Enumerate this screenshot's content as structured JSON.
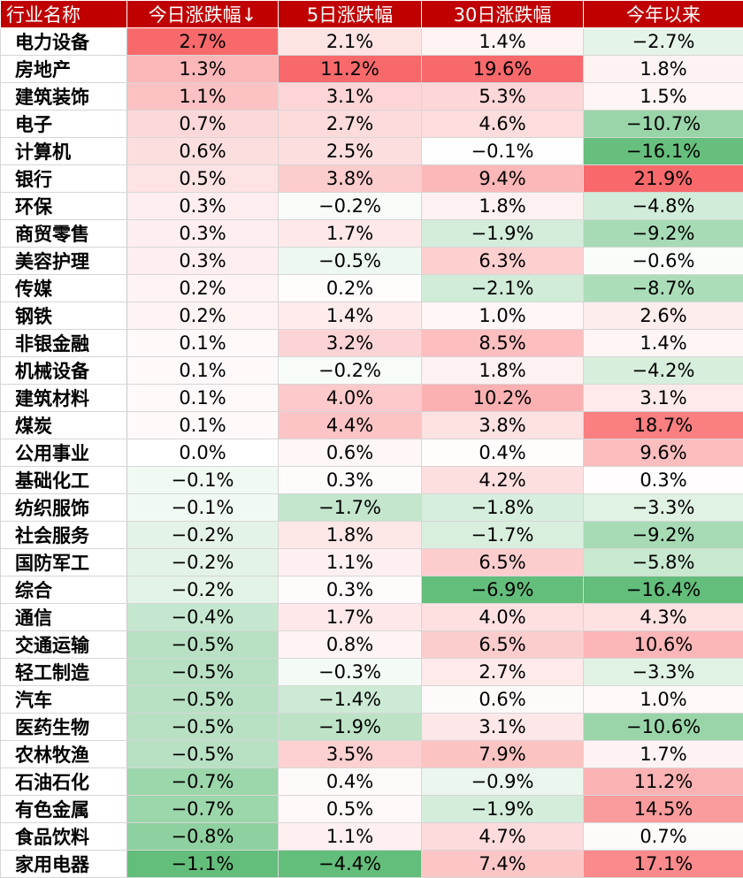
{
  "chart_data": {
    "type": "table",
    "colors": {
      "header_bg": "#c00000",
      "header_text": "#ffffff",
      "positive": "#f8696b",
      "negative": "#63be7b",
      "neutral": "#ffffff"
    },
    "headers": [
      "行业名称",
      "今日涨跌幅↓",
      "5日涨跌幅",
      "30日涨跌幅",
      "今年以来"
    ],
    "rows": [
      {
        "name": "电力设备",
        "values": [
          "2.7%",
          "2.1%",
          "1.4%",
          "−2.7%"
        ],
        "nums": [
          2.7,
          2.1,
          1.4,
          -2.7
        ]
      },
      {
        "name": "房地产",
        "values": [
          "1.3%",
          "11.2%",
          "19.6%",
          "1.8%"
        ],
        "nums": [
          1.3,
          11.2,
          19.6,
          1.8
        ]
      },
      {
        "name": "建筑装饰",
        "values": [
          "1.1%",
          "3.1%",
          "5.3%",
          "1.5%"
        ],
        "nums": [
          1.1,
          3.1,
          5.3,
          1.5
        ]
      },
      {
        "name": "电子",
        "values": [
          "0.7%",
          "2.7%",
          "4.6%",
          "−10.7%"
        ],
        "nums": [
          0.7,
          2.7,
          4.6,
          -10.7
        ]
      },
      {
        "name": "计算机",
        "values": [
          "0.6%",
          "2.5%",
          "−0.1%",
          "−16.1%"
        ],
        "nums": [
          0.6,
          2.5,
          -0.1,
          -16.1
        ]
      },
      {
        "name": "银行",
        "values": [
          "0.5%",
          "3.8%",
          "9.4%",
          "21.9%"
        ],
        "nums": [
          0.5,
          3.8,
          9.4,
          21.9
        ]
      },
      {
        "name": "环保",
        "values": [
          "0.3%",
          "−0.2%",
          "1.8%",
          "−4.8%"
        ],
        "nums": [
          0.3,
          -0.2,
          1.8,
          -4.8
        ]
      },
      {
        "name": "商贸零售",
        "values": [
          "0.3%",
          "1.7%",
          "−1.9%",
          "−9.2%"
        ],
        "nums": [
          0.3,
          1.7,
          -1.9,
          -9.2
        ]
      },
      {
        "name": "美容护理",
        "values": [
          "0.3%",
          "−0.5%",
          "6.3%",
          "−0.6%"
        ],
        "nums": [
          0.3,
          -0.5,
          6.3,
          -0.6
        ]
      },
      {
        "name": "传媒",
        "values": [
          "0.2%",
          "0.2%",
          "−2.1%",
          "−8.7%"
        ],
        "nums": [
          0.2,
          0.2,
          -2.1,
          -8.7
        ]
      },
      {
        "name": "钢铁",
        "values": [
          "0.2%",
          "1.4%",
          "1.0%",
          "2.6%"
        ],
        "nums": [
          0.2,
          1.4,
          1.0,
          2.6
        ]
      },
      {
        "name": "非银金融",
        "values": [
          "0.1%",
          "3.2%",
          "8.5%",
          "1.4%"
        ],
        "nums": [
          0.1,
          3.2,
          8.5,
          1.4
        ]
      },
      {
        "name": "机械设备",
        "values": [
          "0.1%",
          "−0.2%",
          "1.8%",
          "−4.2%"
        ],
        "nums": [
          0.1,
          -0.2,
          1.8,
          -4.2
        ]
      },
      {
        "name": "建筑材料",
        "values": [
          "0.1%",
          "4.0%",
          "10.2%",
          "3.1%"
        ],
        "nums": [
          0.1,
          4.0,
          10.2,
          3.1
        ]
      },
      {
        "name": "煤炭",
        "values": [
          "0.1%",
          "4.4%",
          "3.8%",
          "18.7%"
        ],
        "nums": [
          0.1,
          4.4,
          3.8,
          18.7
        ]
      },
      {
        "name": "公用事业",
        "values": [
          "0.0%",
          "0.6%",
          "0.4%",
          "9.6%"
        ],
        "nums": [
          0.0,
          0.6,
          0.4,
          9.6
        ]
      },
      {
        "name": "基础化工",
        "values": [
          "−0.1%",
          "0.3%",
          "4.2%",
          "0.3%"
        ],
        "nums": [
          -0.1,
          0.3,
          4.2,
          0.3
        ]
      },
      {
        "name": "纺织服饰",
        "values": [
          "−0.1%",
          "−1.7%",
          "−1.8%",
          "−3.3%"
        ],
        "nums": [
          -0.1,
          -1.7,
          -1.8,
          -3.3
        ]
      },
      {
        "name": "社会服务",
        "values": [
          "−0.2%",
          "1.8%",
          "−1.7%",
          "−9.2%"
        ],
        "nums": [
          -0.2,
          1.8,
          -1.7,
          -9.2
        ]
      },
      {
        "name": "国防军工",
        "values": [
          "−0.2%",
          "1.1%",
          "6.5%",
          "−5.8%"
        ],
        "nums": [
          -0.2,
          1.1,
          6.5,
          -5.8
        ]
      },
      {
        "name": "综合",
        "values": [
          "−0.2%",
          "0.3%",
          "−6.9%",
          "−16.4%"
        ],
        "nums": [
          -0.2,
          0.3,
          -6.9,
          -16.4
        ]
      },
      {
        "name": "通信",
        "values": [
          "−0.4%",
          "1.7%",
          "4.0%",
          "4.3%"
        ],
        "nums": [
          -0.4,
          1.7,
          4.0,
          4.3
        ]
      },
      {
        "name": "交通运输",
        "values": [
          "−0.5%",
          "0.8%",
          "6.5%",
          "10.6%"
        ],
        "nums": [
          -0.5,
          0.8,
          6.5,
          10.6
        ]
      },
      {
        "name": "轻工制造",
        "values": [
          "−0.5%",
          "−0.3%",
          "2.7%",
          "−3.3%"
        ],
        "nums": [
          -0.5,
          -0.3,
          2.7,
          -3.3
        ]
      },
      {
        "name": "汽车",
        "values": [
          "−0.5%",
          "−1.4%",
          "0.6%",
          "1.0%"
        ],
        "nums": [
          -0.5,
          -1.4,
          0.6,
          1.0
        ]
      },
      {
        "name": "医药生物",
        "values": [
          "−0.5%",
          "−1.9%",
          "3.1%",
          "−10.6%"
        ],
        "nums": [
          -0.5,
          -1.9,
          3.1,
          -10.6
        ]
      },
      {
        "name": "农林牧渔",
        "values": [
          "−0.5%",
          "3.5%",
          "7.9%",
          "1.7%"
        ],
        "nums": [
          -0.5,
          3.5,
          7.9,
          1.7
        ]
      },
      {
        "name": "石油石化",
        "values": [
          "−0.7%",
          "0.4%",
          "−0.9%",
          "11.2%"
        ],
        "nums": [
          -0.7,
          0.4,
          -0.9,
          11.2
        ]
      },
      {
        "name": "有色金属",
        "values": [
          "−0.7%",
          "0.5%",
          "−1.9%",
          "14.5%"
        ],
        "nums": [
          -0.7,
          0.5,
          -1.9,
          14.5
        ]
      },
      {
        "name": "食品饮料",
        "values": [
          "−0.8%",
          "1.1%",
          "4.7%",
          "0.7%"
        ],
        "nums": [
          -0.8,
          1.1,
          4.7,
          0.7
        ]
      },
      {
        "name": "家用电器",
        "values": [
          "−1.1%",
          "−4.4%",
          "7.4%",
          "17.1%"
        ],
        "nums": [
          -1.1,
          -4.4,
          7.4,
          17.1
        ]
      }
    ]
  }
}
